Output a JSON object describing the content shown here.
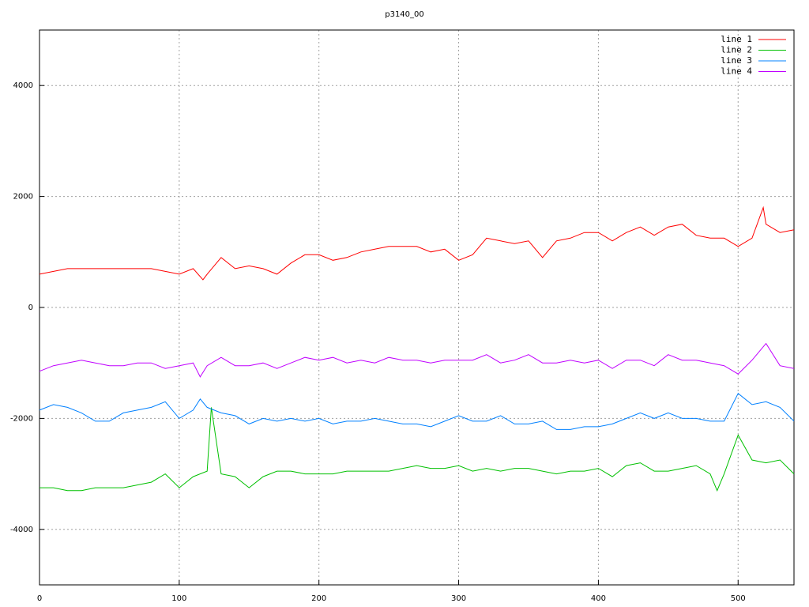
{
  "chart_data": {
    "type": "line",
    "title": "p3140_00",
    "xlim": [
      0,
      540
    ],
    "xticks": [
      0,
      100,
      200,
      300,
      400,
      500
    ],
    "ylim": [
      -5000,
      5000
    ],
    "yticks": [
      -4000,
      -2000,
      0,
      2000,
      4000
    ],
    "grid": true,
    "legend": "top-right",
    "series": [
      {
        "name": "line 1",
        "color": "#ff0000",
        "x": [
          0,
          10,
          20,
          30,
          40,
          50,
          60,
          70,
          80,
          90,
          100,
          110,
          117,
          120,
          130,
          140,
          150,
          160,
          170,
          180,
          190,
          200,
          210,
          220,
          230,
          240,
          250,
          260,
          270,
          280,
          290,
          300,
          310,
          320,
          330,
          340,
          350,
          360,
          370,
          380,
          390,
          400,
          410,
          420,
          430,
          440,
          450,
          460,
          470,
          480,
          490,
          500,
          510,
          518,
          520,
          530,
          540
        ],
        "values": [
          600,
          650,
          700,
          700,
          700,
          700,
          700,
          700,
          700,
          650,
          600,
          700,
          500,
          600,
          900,
          700,
          750,
          700,
          600,
          800,
          950,
          950,
          850,
          900,
          1000,
          1050,
          1100,
          1100,
          1100,
          1000,
          1050,
          850,
          950,
          1250,
          1200,
          1150,
          1200,
          900,
          1200,
          1250,
          1350,
          1350,
          1200,
          1350,
          1450,
          1300,
          1450,
          1500,
          1300,
          1250,
          1250,
          1100,
          1250,
          1800,
          1500,
          1350,
          1400
        ]
      },
      {
        "name": "line 2",
        "color": "#00c000",
        "x": [
          0,
          10,
          20,
          30,
          40,
          50,
          60,
          70,
          80,
          90,
          100,
          110,
          120,
          123,
          130,
          140,
          150,
          160,
          170,
          180,
          190,
          200,
          210,
          220,
          230,
          240,
          250,
          260,
          270,
          280,
          290,
          300,
          310,
          320,
          330,
          340,
          350,
          360,
          370,
          380,
          390,
          400,
          410,
          420,
          430,
          440,
          450,
          460,
          470,
          480,
          485,
          490,
          500,
          510,
          520,
          530,
          540
        ],
        "values": [
          -3250,
          -3250,
          -3300,
          -3300,
          -3250,
          -3250,
          -3250,
          -3200,
          -3150,
          -3000,
          -3250,
          -3050,
          -2950,
          -1800,
          -3000,
          -3050,
          -3250,
          -3050,
          -2950,
          -2950,
          -3000,
          -3000,
          -3000,
          -2950,
          -2950,
          -2950,
          -2950,
          -2900,
          -2850,
          -2900,
          -2900,
          -2850,
          -2950,
          -2900,
          -2950,
          -2900,
          -2900,
          -2950,
          -3000,
          -2950,
          -2950,
          -2900,
          -3050,
          -2850,
          -2800,
          -2950,
          -2950,
          -2900,
          -2850,
          -3000,
          -3300,
          -3000,
          -2300,
          -2750,
          -2800,
          -2750,
          -3000
        ]
      },
      {
        "name": "line 3",
        "color": "#0080ff",
        "x": [
          0,
          10,
          20,
          30,
          40,
          50,
          60,
          70,
          80,
          90,
          100,
          110,
          115,
          120,
          130,
          140,
          150,
          160,
          170,
          180,
          190,
          200,
          210,
          220,
          230,
          240,
          250,
          260,
          270,
          280,
          290,
          300,
          310,
          320,
          330,
          340,
          350,
          360,
          370,
          380,
          390,
          400,
          410,
          420,
          430,
          440,
          450,
          460,
          470,
          480,
          490,
          500,
          510,
          520,
          530,
          540
        ],
        "values": [
          -1850,
          -1750,
          -1800,
          -1900,
          -2050,
          -2050,
          -1900,
          -1850,
          -1800,
          -1700,
          -2000,
          -1850,
          -1650,
          -1800,
          -1900,
          -1950,
          -2100,
          -2000,
          -2050,
          -2000,
          -2050,
          -2000,
          -2100,
          -2050,
          -2050,
          -2000,
          -2050,
          -2100,
          -2100,
          -2150,
          -2050,
          -1950,
          -2050,
          -2050,
          -1950,
          -2100,
          -2100,
          -2050,
          -2200,
          -2200,
          -2150,
          -2150,
          -2100,
          -2000,
          -1900,
          -2000,
          -1900,
          -2000,
          -2000,
          -2050,
          -2050,
          -1550,
          -1750,
          -1700,
          -1800,
          -2050
        ]
      },
      {
        "name": "line 4",
        "color": "#c000ff",
        "x": [
          0,
          10,
          20,
          30,
          40,
          50,
          60,
          70,
          80,
          90,
          100,
          110,
          115,
          120,
          130,
          140,
          150,
          160,
          170,
          180,
          190,
          200,
          210,
          220,
          230,
          240,
          250,
          260,
          270,
          280,
          290,
          300,
          310,
          320,
          330,
          340,
          350,
          360,
          370,
          380,
          390,
          400,
          410,
          420,
          430,
          440,
          450,
          460,
          470,
          480,
          490,
          500,
          510,
          520,
          530,
          540
        ],
        "values": [
          -1150,
          -1050,
          -1000,
          -950,
          -1000,
          -1050,
          -1050,
          -1000,
          -1000,
          -1100,
          -1050,
          -1000,
          -1250,
          -1050,
          -900,
          -1050,
          -1050,
          -1000,
          -1100,
          -1000,
          -900,
          -950,
          -900,
          -1000,
          -950,
          -1000,
          -900,
          -950,
          -950,
          -1000,
          -950,
          -950,
          -950,
          -850,
          -1000,
          -950,
          -850,
          -1000,
          -1000,
          -950,
          -1000,
          -950,
          -1100,
          -950,
          -950,
          -1050,
          -850,
          -950,
          -950,
          -1000,
          -1050,
          -1200,
          -950,
          -650,
          -1050,
          -1100
        ]
      }
    ]
  }
}
